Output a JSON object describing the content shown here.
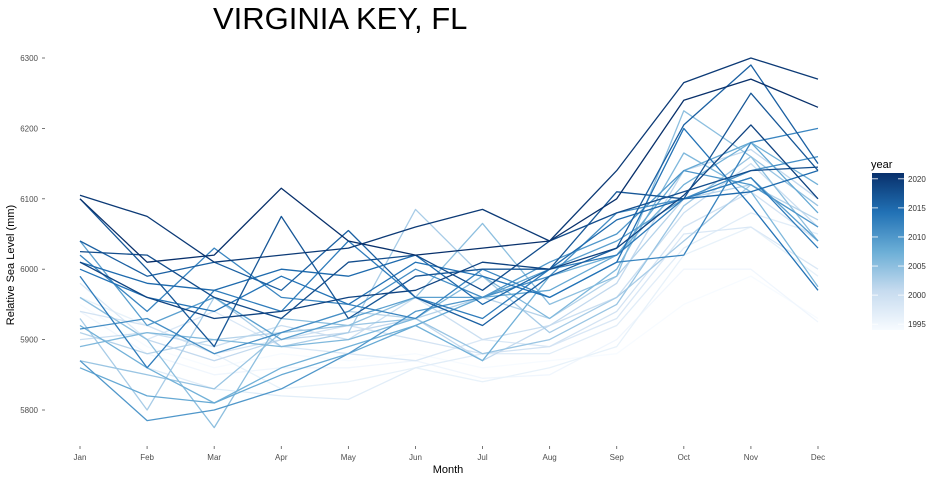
{
  "chart_data": {
    "type": "line",
    "title": "VIRGINIA KEY, FL",
    "xlabel": "Month",
    "ylabel": "Relative Sea Level (mm)",
    "categories": [
      "Jan",
      "Feb",
      "Mar",
      "Apr",
      "May",
      "Jun",
      "Jul",
      "Aug",
      "Sep",
      "Oct",
      "Nov",
      "Dec"
    ],
    "yticks": [
      5800,
      5900,
      6000,
      6100,
      6200,
      6300
    ],
    "ylim": [
      5770,
      6300
    ],
    "grid": false,
    "legend": {
      "title": "year",
      "placement": "right",
      "type": "colorbar",
      "range": [
        1994,
        2021
      ],
      "ticks": [
        1995,
        2000,
        2005,
        2010,
        2015,
        2020
      ],
      "color_low": "#f7fbff",
      "color_high": "#08306b"
    },
    "series": [
      {
        "year": 1994,
        "values": [
          5950,
          5890,
          5860,
          5880,
          5870,
          5880,
          5860,
          5870,
          5880,
          5950,
          5990,
          5930
        ]
      },
      {
        "year": 1995,
        "values": [
          5940,
          5880,
          5850,
          5860,
          5860,
          5870,
          5845,
          5850,
          5900,
          6000,
          6000,
          5925
        ]
      },
      {
        "year": 1996,
        "values": [
          5960,
          5920,
          5880,
          5830,
          5840,
          5860,
          5840,
          5860,
          5890,
          6020,
          6060,
          5990
        ]
      },
      {
        "year": 1997,
        "values": [
          5920,
          5860,
          5830,
          5820,
          5815,
          5860,
          5880,
          5880,
          5920,
          6030,
          6080,
          6050
        ]
      },
      {
        "year": 1998,
        "values": [
          5980,
          5900,
          5940,
          5890,
          5880,
          5870,
          5900,
          5890,
          5930,
          6050,
          6060,
          6000
        ]
      },
      {
        "year": 1999,
        "values": [
          5940,
          5920,
          5880,
          5900,
          5920,
          5900,
          5880,
          5890,
          5940,
          6060,
          6110,
          6040
        ]
      },
      {
        "year": 2000,
        "values": [
          5900,
          5910,
          5890,
          5920,
          5900,
          5960,
          5900,
          5920,
          5960,
          6080,
          6150,
          6060
        ]
      },
      {
        "year": 2001,
        "values": [
          5960,
          5900,
          5870,
          5900,
          5910,
          5930,
          5870,
          5920,
          5980,
          6140,
          6170,
          6100
        ]
      },
      {
        "year": 2002,
        "values": [
          5910,
          5880,
          5900,
          5910,
          5940,
          5930,
          5960,
          5930,
          5990,
          6100,
          6120,
          6070
        ]
      },
      {
        "year": 2003,
        "values": [
          5930,
          5800,
          5960,
          5890,
          5910,
          6085,
          5990,
          5910,
          5960,
          6040,
          6120,
          6060
        ]
      },
      {
        "year": 2004,
        "values": [
          5870,
          5850,
          5830,
          5910,
          5920,
          5930,
          5880,
          5900,
          5950,
          6090,
          6160,
          6090
        ]
      },
      {
        "year": 2005,
        "values": [
          5960,
          5900,
          5775,
          5930,
          5920,
          5960,
          6065,
          5950,
          5990,
          6225,
          6160,
          6040
        ]
      },
      {
        "year": 2006,
        "values": [
          5890,
          5910,
          5900,
          5890,
          5900,
          5930,
          5990,
          5930,
          6000,
          6165,
          6110,
          5975
        ]
      },
      {
        "year": 2007,
        "values": [
          5920,
          5860,
          5810,
          5860,
          5890,
          5920,
          5870,
          5990,
          6020,
          6120,
          6180,
          6120
        ]
      },
      {
        "year": 2008,
        "values": [
          5860,
          5820,
          5810,
          5850,
          5880,
          5920,
          5960,
          5970,
          6020,
          6140,
          6180,
          6080
        ]
      },
      {
        "year": 2009,
        "values": [
          6040,
          5920,
          5960,
          5900,
          5930,
          5960,
          5960,
          6000,
          6040,
          6100,
          6130,
          6040
        ]
      },
      {
        "year": 2010,
        "values": [
          5870,
          5785,
          5800,
          5830,
          5880,
          5940,
          5960,
          6010,
          6050,
          6140,
          6120,
          6060
        ]
      },
      {
        "year": 2011,
        "values": [
          5915,
          5930,
          5880,
          5910,
          5940,
          6000,
          5960,
          5990,
          6080,
          6100,
          6140,
          6160
        ]
      },
      {
        "year": 2012,
        "values": [
          6020,
          5940,
          6030,
          5960,
          5950,
          5930,
          6000,
          5960,
          6010,
          6020,
          6180,
          6200
        ]
      },
      {
        "year": 2013,
        "values": [
          5990,
          5860,
          5970,
          5940,
          6040,
          5960,
          5930,
          6000,
          6020,
          6100,
          6130,
          6030
        ]
      },
      {
        "year": 2014,
        "values": [
          6000,
          5960,
          5940,
          5990,
          5950,
          6010,
          5990,
          5960,
          6010,
          6200,
          6090,
          5970
        ]
      },
      {
        "year": 2015,
        "values": [
          6010,
          5980,
          5970,
          6000,
          5990,
          6020,
          5950,
          6000,
          6070,
          6100,
          6110,
          6140
        ]
      },
      {
        "year": 2016,
        "values": [
          6040,
          5990,
          6010,
          5970,
          6055,
          5960,
          5920,
          5990,
          6030,
          6205,
          6290,
          6150
        ]
      },
      {
        "year": 2017,
        "values": [
          6100,
          6000,
          5890,
          6075,
          5930,
          5990,
          6000,
          6000,
          6110,
          6100,
          6250,
          6140
        ]
      },
      {
        "year": 2018,
        "values": [
          6025,
          6020,
          5960,
          5930,
          6010,
          6020,
          5970,
          6040,
          6080,
          6110,
          6140,
          6145
        ]
      },
      {
        "year": 2019,
        "values": [
          6010,
          5960,
          5930,
          5940,
          5960,
          5970,
          6010,
          6000,
          6030,
          6105,
          6205,
          6100
        ]
      },
      {
        "year": 2020,
        "values": [
          6105,
          6075,
          6010,
          6020,
          6030,
          6060,
          6085,
          6040,
          6140,
          6265,
          6300,
          6270
        ]
      },
      {
        "year": 2021,
        "values": [
          6100,
          6010,
          6020,
          6115,
          6040,
          6020,
          6030,
          6040,
          6100,
          6240,
          6270,
          6230
        ]
      }
    ]
  }
}
